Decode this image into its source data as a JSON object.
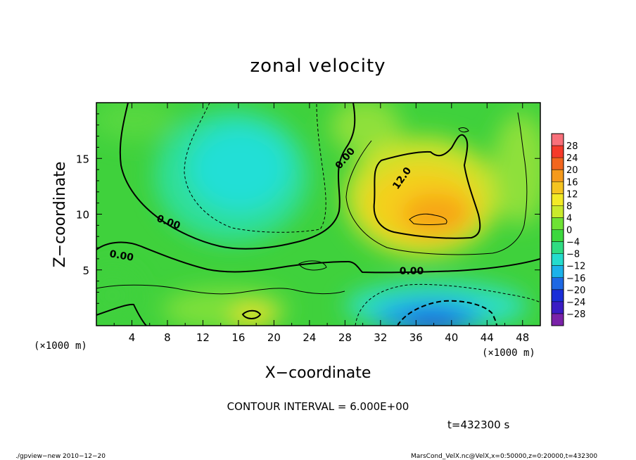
{
  "chart_data": {
    "type": "heatmap",
    "title": "zonal velocity",
    "xlabel": "X−coordinate",
    "ylabel": "Z−coordinate",
    "x_unit": "(×1000 m)",
    "y_unit": "(×1000 m)",
    "xlim": [
      0,
      50
    ],
    "ylim": [
      0,
      20
    ],
    "x_ticks": [
      "4",
      "8",
      "12",
      "16",
      "20",
      "24",
      "28",
      "32",
      "36",
      "40",
      "44",
      "48"
    ],
    "y_ticks": [
      "5",
      "10",
      "15"
    ],
    "colorbar_labels": [
      "28",
      "24",
      "20",
      "16",
      "12",
      "8",
      "4",
      "0",
      "−4",
      "−8",
      "−12",
      "−16",
      "−20",
      "−24",
      "−28"
    ],
    "contour_labels": [
      "0.00",
      "0.00",
      "0.00",
      "0.00",
      "12.0"
    ],
    "contour_interval_text": "CONTOUR INTERVAL = 6.000E+00",
    "time_text": "t=432300 s",
    "footer_left": "./gpview−new   2010−12−20",
    "footer_right": "MarsCond_VelX.nc@VelX,x=0:50000,z=0:20000,t=432300",
    "grid": false
  }
}
